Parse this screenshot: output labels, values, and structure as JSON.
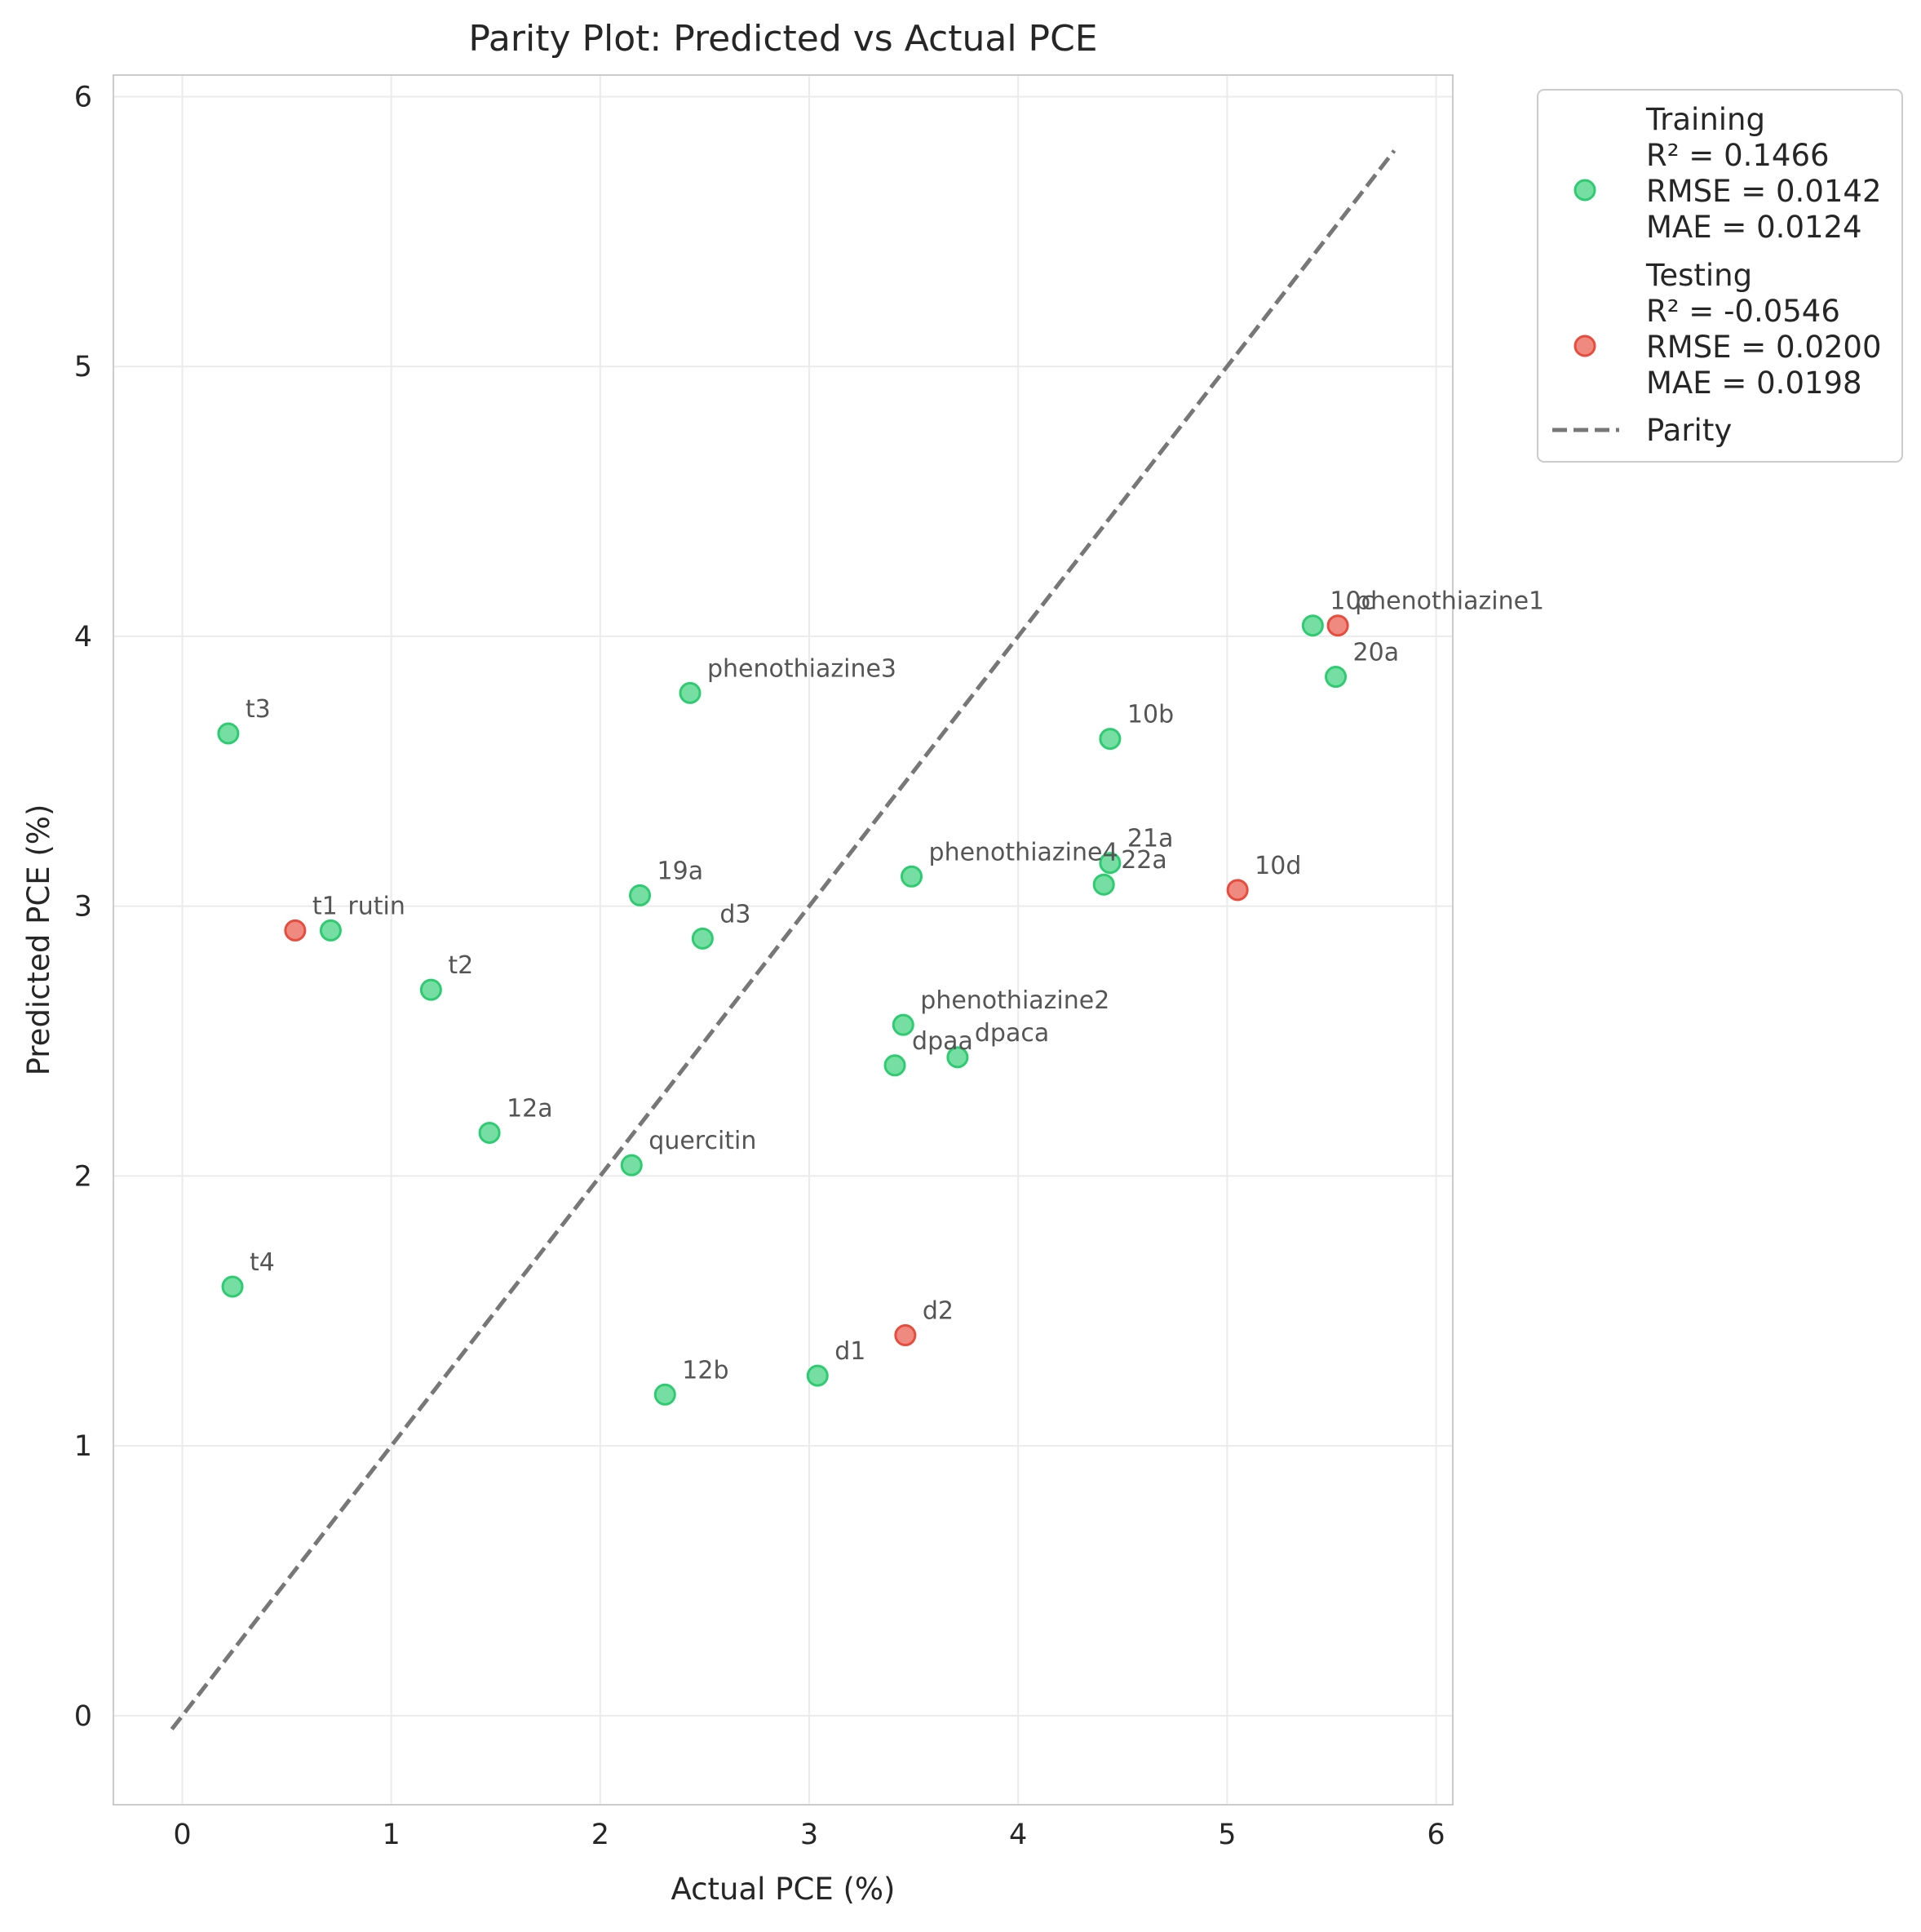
{
  "chart_data": {
    "type": "scatter",
    "title": "Parity Plot: Predicted vs Actual PCE",
    "xlabel": "Actual PCE (%)",
    "ylabel": "Predicted PCE (%)",
    "xlim": [
      -0.33,
      6.08
    ],
    "ylim": [
      -0.33,
      6.08
    ],
    "xticks": [
      "0",
      "1",
      "2",
      "3",
      "4",
      "5",
      "6"
    ],
    "yticks": [
      "0",
      "1",
      "2",
      "3",
      "4",
      "5",
      "6"
    ],
    "grid": true,
    "legend_position": "outside-top-right",
    "colors": {
      "training": "#2ecc71",
      "testing": "#e74c3c",
      "parity": "#777777"
    },
    "parity_line": {
      "name": "Parity",
      "x": [
        -0.05,
        5.8
      ],
      "y": [
        -0.05,
        5.8
      ]
    },
    "series": [
      {
        "name": "Training",
        "legend_lines": [
          "Training",
          "R² = 0.1466",
          "RMSE = 0.0142",
          "MAE = 0.0124"
        ],
        "points": [
          {
            "label": "t3",
            "x": 0.22,
            "y": 3.64
          },
          {
            "label": "phenothiazine3",
            "x": 2.43,
            "y": 3.79
          },
          {
            "label": "10b",
            "x": 4.44,
            "y": 3.62
          },
          {
            "label": "10c",
            "x": 5.41,
            "y": 4.04
          },
          {
            "label": "20a",
            "x": 5.52,
            "y": 3.85
          },
          {
            "label": "rutin",
            "x": 0.71,
            "y": 2.91
          },
          {
            "label": "t2",
            "x": 1.19,
            "y": 2.69
          },
          {
            "label": "19a",
            "x": 2.19,
            "y": 3.04
          },
          {
            "label": "d3",
            "x": 2.49,
            "y": 2.88
          },
          {
            "label": "phenothiazine4",
            "x": 3.49,
            "y": 3.11
          },
          {
            "label": "21a",
            "x": 4.44,
            "y": 3.16
          },
          {
            "label": "22a",
            "x": 4.41,
            "y": 3.08
          },
          {
            "label": "phenothiazine2",
            "x": 3.45,
            "y": 2.56
          },
          {
            "label": "dpaca",
            "x": 3.71,
            "y": 2.44
          },
          {
            "label": "dpaa",
            "x": 3.41,
            "y": 2.41
          },
          {
            "label": "12a",
            "x": 1.47,
            "y": 2.16
          },
          {
            "label": "quercitin",
            "x": 2.15,
            "y": 2.04
          },
          {
            "label": "t4",
            "x": 0.24,
            "y": 1.59
          },
          {
            "label": "12b",
            "x": 2.31,
            "y": 1.19
          },
          {
            "label": "d1",
            "x": 3.04,
            "y": 1.26
          }
        ]
      },
      {
        "name": "Testing",
        "legend_lines": [
          "Testing",
          "R² = -0.0546",
          "RMSE = 0.0200",
          "MAE = 0.0198"
        ],
        "points": [
          {
            "label": "phenothiazine1",
            "x": 5.53,
            "y": 4.04
          },
          {
            "label": "t1",
            "x": 0.54,
            "y": 2.91
          },
          {
            "label": "10d",
            "x": 5.05,
            "y": 3.06
          },
          {
            "label": "d2",
            "x": 3.46,
            "y": 1.41
          }
        ]
      }
    ]
  }
}
